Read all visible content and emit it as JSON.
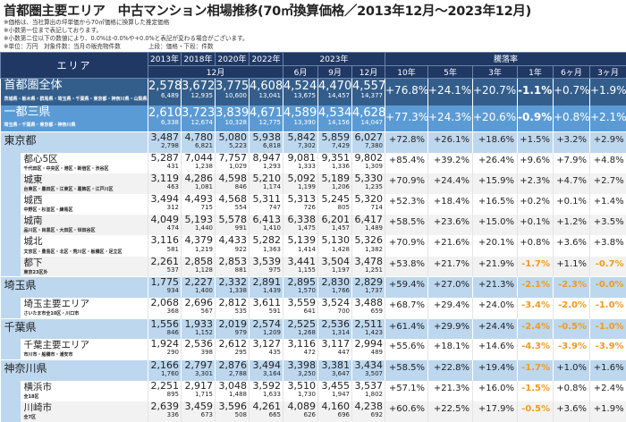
{
  "title": "首都圏主要エリア　中古マンション相場推移(70㎡換算価格／2013年12月～2023年12月)",
  "notes": [
    "※価格は、当社算出の坪単価から70㎡価格に換算した推定価格",
    "※小数第一位まで表記しております。",
    "※小数第二位以下の数値により、0.0%は-0.0%や+0.0%と表記が変わる場合がございます。"
  ],
  "unit_note": "※単位：万円　対象件数：当月の販売物件数",
  "legend_note": "上段：価格・下段：件数",
  "header": {
    "area": "エリア",
    "years": [
      "2013年",
      "2018年",
      "2020年",
      "2022年"
    ],
    "year2023": "2023年",
    "dec": "12月",
    "months": [
      "6月",
      "9月",
      "12月"
    ],
    "rate_title": "騰落率",
    "rates": [
      "10年",
      "5年",
      "3年",
      "1年",
      "6ヶ月",
      "3ヶ月"
    ]
  },
  "rows": [
    {
      "level": "total",
      "label": "首都圏全体",
      "sub": "茨城県・栃木県・群馬県・埼玉県・千葉県・東京都・神奈川県・山梨県",
      "prices": [
        "2,578",
        "3,672",
        "3,775",
        "4,608",
        "4,524",
        "4,470",
        "4,557"
      ],
      "counts": [
        "6,489",
        "12,935",
        "10,600",
        "13,041",
        "13,675",
        "14,457",
        "14,377"
      ],
      "rates": [
        "+76.8%",
        "+24.1%",
        "+20.7%",
        "-1.1%",
        "+0.7%",
        "+1.9%"
      ]
    },
    {
      "level": "kanto",
      "label": "一都三県",
      "sub": "埼玉県・千葉県・東京都・神奈川県",
      "prices": [
        "2,610",
        "3,723",
        "3,839",
        "4,671",
        "4,589",
        "4,534",
        "4,628"
      ],
      "counts": [
        "6,338",
        "12,674",
        "10,328",
        "12,775",
        "13,390",
        "14,156",
        "14,047"
      ],
      "rates": [
        "+77.3%",
        "+24.3%",
        "+20.6%",
        "-0.9%",
        "+0.8%",
        "+2.1%"
      ]
    },
    {
      "level": "pref",
      "label": "東京都",
      "sub": "",
      "prices": [
        "3,487",
        "4,780",
        "5,080",
        "5,938",
        "5,842",
        "5,859",
        "6,027"
      ],
      "counts": [
        "2,798",
        "6,821",
        "5,223",
        "6,818",
        "7,302",
        "7,429",
        "7,380"
      ],
      "rates": [
        "+72.8%",
        "+26.1%",
        "+18.6%",
        "+1.5%",
        "+3.2%",
        "+2.9%"
      ]
    },
    {
      "level": "sub",
      "alt": false,
      "label": "都心5区",
      "sub": "千代田区・中央区・港区・新宿区・渋谷区",
      "prices": [
        "5,287",
        "7,044",
        "7,757",
        "8,947",
        "9,081",
        "9,351",
        "9,802"
      ],
      "counts": [
        "431",
        "1,238",
        "1,029",
        "1,293",
        "1,333",
        "1,336",
        "1,309"
      ],
      "rates": [
        "+85.4%",
        "+39.2%",
        "+26.4%",
        "+9.6%",
        "+7.9%",
        "+4.8%"
      ]
    },
    {
      "level": "sub",
      "alt": true,
      "label": "城東",
      "sub": "台東区・墨田区・江東区・葛飾区・江戸川区",
      "prices": [
        "3,119",
        "4,286",
        "4,598",
        "5,210",
        "5,092",
        "5,189",
        "5,330"
      ],
      "counts": [
        "463",
        "1,081",
        "846",
        "1,174",
        "1,199",
        "1,206",
        "1,235"
      ],
      "rates": [
        "+70.9%",
        "+24.4%",
        "+15.9%",
        "+2.3%",
        "+4.7%",
        "+2.7%"
      ]
    },
    {
      "level": "sub",
      "alt": false,
      "label": "城西",
      "sub": "中野区・杉並区・練馬区",
      "prices": [
        "3,494",
        "4,493",
        "4,568",
        "5,311",
        "5,313",
        "5,245",
        "5,320"
      ],
      "counts": [
        "312",
        "715",
        "554",
        "747",
        "726",
        "805",
        "714"
      ],
      "rates": [
        "+52.3%",
        "+18.4%",
        "+16.5%",
        "+0.2%",
        "+0.1%",
        "+1.4%"
      ]
    },
    {
      "level": "sub",
      "alt": true,
      "label": "城南",
      "sub": "品川区・目黒区・大田区・世田谷区",
      "prices": [
        "4,049",
        "5,193",
        "5,578",
        "6,413",
        "6,338",
        "6,201",
        "6,417"
      ],
      "counts": [
        "474",
        "1,440",
        "991",
        "1,410",
        "1,475",
        "1,457",
        "1,489"
      ],
      "rates": [
        "+58.5%",
        "+23.6%",
        "+15.0%",
        "+0.1%",
        "+1.2%",
        "+3.5%"
      ]
    },
    {
      "level": "sub",
      "alt": false,
      "label": "城北",
      "sub": "文京区・豊島区・北区・荒川区・板橋区・足立区",
      "prices": [
        "3,116",
        "4,379",
        "4,433",
        "5,282",
        "5,139",
        "5,130",
        "5,326"
      ],
      "counts": [
        "581",
        "1,219",
        "922",
        "1,363",
        "1,414",
        "1,428",
        "1,382"
      ],
      "rates": [
        "+70.9%",
        "+21.6%",
        "+20.1%",
        "+0.8%",
        "+3.6%",
        "+3.8%"
      ]
    },
    {
      "level": "sub",
      "alt": true,
      "label": "都下",
      "sub": "東京23区外",
      "prices": [
        "2,261",
        "2,858",
        "2,853",
        "3,539",
        "3,441",
        "3,504",
        "3,478"
      ],
      "counts": [
        "537",
        "1,128",
        "881",
        "975",
        "1,155",
        "1,197",
        "1,251"
      ],
      "rates": [
        "+53.8%",
        "+21.7%",
        "+21.9%",
        "-1.7%",
        "+1.1%",
        "-0.7%"
      ]
    },
    {
      "level": "pref",
      "label": "埼玉県",
      "sub": "",
      "prices": [
        "1,775",
        "2,227",
        "2,332",
        "2,891",
        "2,895",
        "2,830",
        "2,829"
      ],
      "counts": [
        "934",
        "1,400",
        "1,338",
        "1,439",
        "1,570",
        "1,766",
        "1,737"
      ],
      "rates": [
        "+59.4%",
        "+27.0%",
        "+21.3%",
        "-2.1%",
        "-2.3%",
        "-0.0%"
      ]
    },
    {
      "level": "sub",
      "alt": false,
      "label": "埼玉主要エリア",
      "sub": "さいたま市全10区・川口市",
      "prices": [
        "2,068",
        "2,696",
        "2,812",
        "3,611",
        "3,559",
        "3,524",
        "3,488"
      ],
      "counts": [
        "368",
        "567",
        "535",
        "591",
        "641",
        "700",
        "659"
      ],
      "rates": [
        "+68.7%",
        "+29.4%",
        "+24.0%",
        "-3.4%",
        "-2.0%",
        "-1.0%"
      ]
    },
    {
      "level": "pref",
      "label": "千葉県",
      "sub": "",
      "prices": [
        "1,556",
        "1,933",
        "2,019",
        "2,574",
        "2,525",
        "2,536",
        "2,511"
      ],
      "counts": [
        "846",
        "1,152",
        "979",
        "1,209",
        "1,268",
        "1,314",
        "1,423"
      ],
      "rates": [
        "+61.4%",
        "+29.9%",
        "+24.4%",
        "-2.4%",
        "-0.5%",
        "-1.0%"
      ]
    },
    {
      "level": "sub",
      "alt": false,
      "label": "千葉主要エリア",
      "sub": "市川市・船橋市・浦安市",
      "prices": [
        "1,924",
        "2,536",
        "2,612",
        "3,127",
        "3,116",
        "3,117",
        "2,994"
      ],
      "counts": [
        "290",
        "398",
        "295",
        "435",
        "472",
        "447",
        "489"
      ],
      "rates": [
        "+55.6%",
        "+18.1%",
        "+14.6%",
        "-4.3%",
        "-3.9%",
        "-3.9%"
      ]
    },
    {
      "level": "pref",
      "label": "神奈川県",
      "sub": "",
      "prices": [
        "2,166",
        "2,797",
        "2,876",
        "3,494",
        "3,398",
        "3,381",
        "3,434"
      ],
      "counts": [
        "1,760",
        "3,301",
        "2,788",
        "3,164",
        "3,250",
        "3,647",
        "3,507"
      ],
      "rates": [
        "+58.5%",
        "+22.8%",
        "+19.4%",
        "-1.7%",
        "+1.0%",
        "+1.6%"
      ]
    },
    {
      "level": "sub",
      "alt": false,
      "label": "横浜市",
      "sub": "全18区",
      "prices": [
        "2,251",
        "2,917",
        "3,048",
        "3,592",
        "3,510",
        "3,455",
        "3,537"
      ],
      "counts": [
        "895",
        "1,715",
        "1,488",
        "1,633",
        "1,730",
        "1,947",
        "1,802"
      ],
      "rates": [
        "+57.1%",
        "+21.3%",
        "+16.0%",
        "-1.5%",
        "+0.8%",
        "+2.4%"
      ]
    },
    {
      "level": "sub",
      "alt": true,
      "label": "川崎市",
      "sub": "全7区",
      "prices": [
        "2,639",
        "3,459",
        "3,596",
        "4,261",
        "4,089",
        "4,160",
        "4,238"
      ],
      "counts": [
        "336",
        "673",
        "508",
        "665",
        "626",
        "696",
        "692"
      ],
      "rates": [
        "+60.6%",
        "+22.5%",
        "+17.9%",
        "-0.5%",
        "+3.6%",
        "+1.9%"
      ]
    }
  ],
  "colors": {
    "header": "#1f3864",
    "total": "#335e8c",
    "kanto": "#5b9bd5",
    "pref": "#bdd7ee",
    "negative": "#f29a1f"
  }
}
